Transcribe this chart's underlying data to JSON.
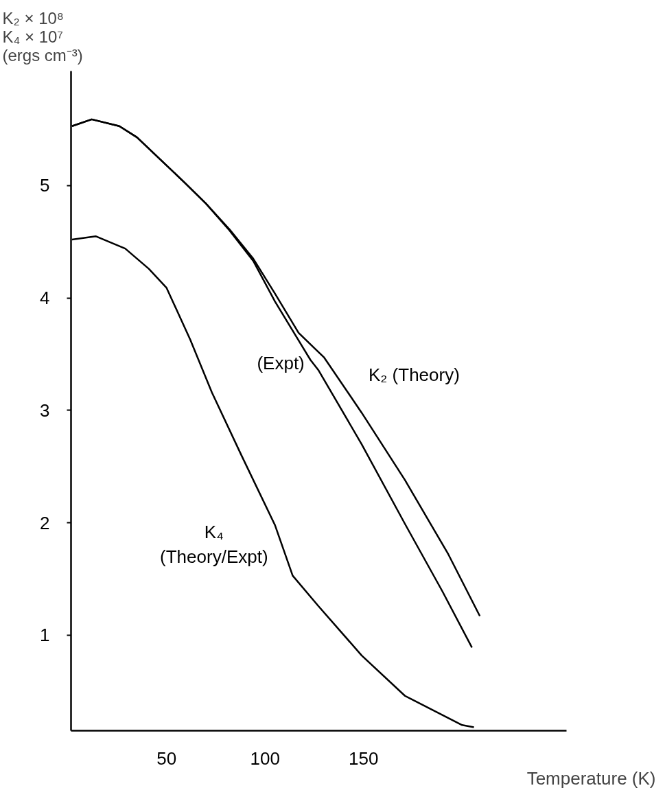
{
  "chart_data": {
    "type": "line",
    "ylabel": "K₂ × 10⁸\nK₄ × 10⁷\n(ergs cm⁻³)",
    "xlabel": "Temperature (K)",
    "xlim": [
      1.5,
      253
    ],
    "xticks": [
      50,
      100,
      150
    ],
    "ylim": [
      0.15,
      6.02
    ],
    "yticks": [
      1,
      2,
      3,
      4,
      5
    ],
    "grid": false,
    "marker": "none",
    "line_style": "solid",
    "series": [
      {
        "name": "K₂ (Theory)",
        "color": "#000000",
        "x": [
          2,
          12,
          26,
          35,
          47,
          59,
          70,
          82,
          94,
          105,
          117,
          130,
          149,
          171,
          193,
          209
        ],
        "values": [
          5.53,
          5.59,
          5.53,
          5.43,
          5.23,
          5.03,
          4.84,
          4.61,
          4.35,
          4.04,
          3.69,
          3.47,
          2.98,
          2.38,
          1.72,
          1.17
        ]
      },
      {
        "name": "(Expt)",
        "color": "#000000",
        "x": [
          2,
          12,
          26,
          35,
          47,
          59,
          70,
          82,
          94,
          105,
          123,
          127,
          149,
          171,
          190,
          205
        ],
        "values": [
          5.53,
          5.59,
          5.53,
          5.43,
          5.23,
          5.03,
          4.84,
          4.6,
          4.33,
          3.97,
          3.45,
          3.36,
          2.7,
          1.99,
          1.39,
          0.89
        ]
      },
      {
        "name": "K₄ (Theory/Expt)",
        "color": "#000000",
        "x": [
          2,
          14,
          29,
          41,
          50,
          62,
          73,
          88,
          105,
          114,
          127,
          149,
          171,
          200,
          206
        ],
        "values": [
          4.52,
          4.55,
          4.44,
          4.26,
          4.09,
          3.63,
          3.16,
          2.6,
          1.98,
          1.53,
          1.26,
          0.82,
          0.46,
          0.2,
          0.18
        ]
      }
    ]
  }
}
